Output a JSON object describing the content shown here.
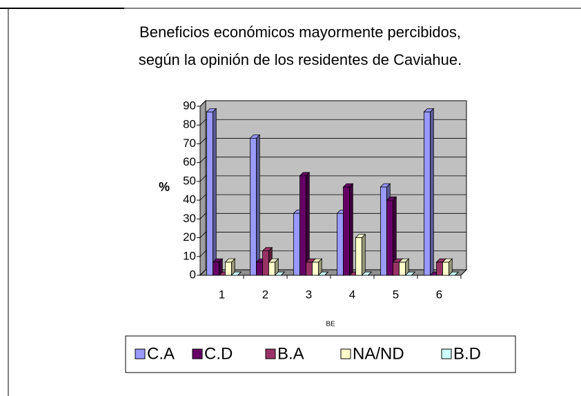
{
  "chart_data": {
    "type": "bar3d",
    "title": [
      "Beneficios económicos mayormente percibidos,",
      "según la opinión de los residentes de Caviahue."
    ],
    "y_label": "%",
    "x_label": "BE",
    "categories": [
      "1",
      "2",
      "3",
      "4",
      "5",
      "6"
    ],
    "series": [
      {
        "name": "C.A",
        "color": "#9999ff",
        "values": [
          87,
          73,
          33,
          33,
          47,
          87
        ]
      },
      {
        "name": "C.D",
        "color": "#660066",
        "values": [
          7,
          7,
          53,
          47,
          40,
          0
        ]
      },
      {
        "name": "B.A",
        "color": "#993366",
        "values": [
          0,
          13,
          7,
          0,
          7,
          7
        ]
      },
      {
        "name": "NA/ND",
        "color": "#ffffcc",
        "values": [
          7,
          7,
          7,
          20,
          7,
          7
        ]
      },
      {
        "name": "B.D",
        "color": "#ccffff",
        "values": [
          0,
          0,
          0,
          0,
          0,
          0
        ]
      }
    ],
    "ylim": [
      0,
      90
    ],
    "yticks": [
      0,
      10,
      20,
      30,
      40,
      50,
      60,
      70,
      80,
      90
    ],
    "grid": true
  }
}
